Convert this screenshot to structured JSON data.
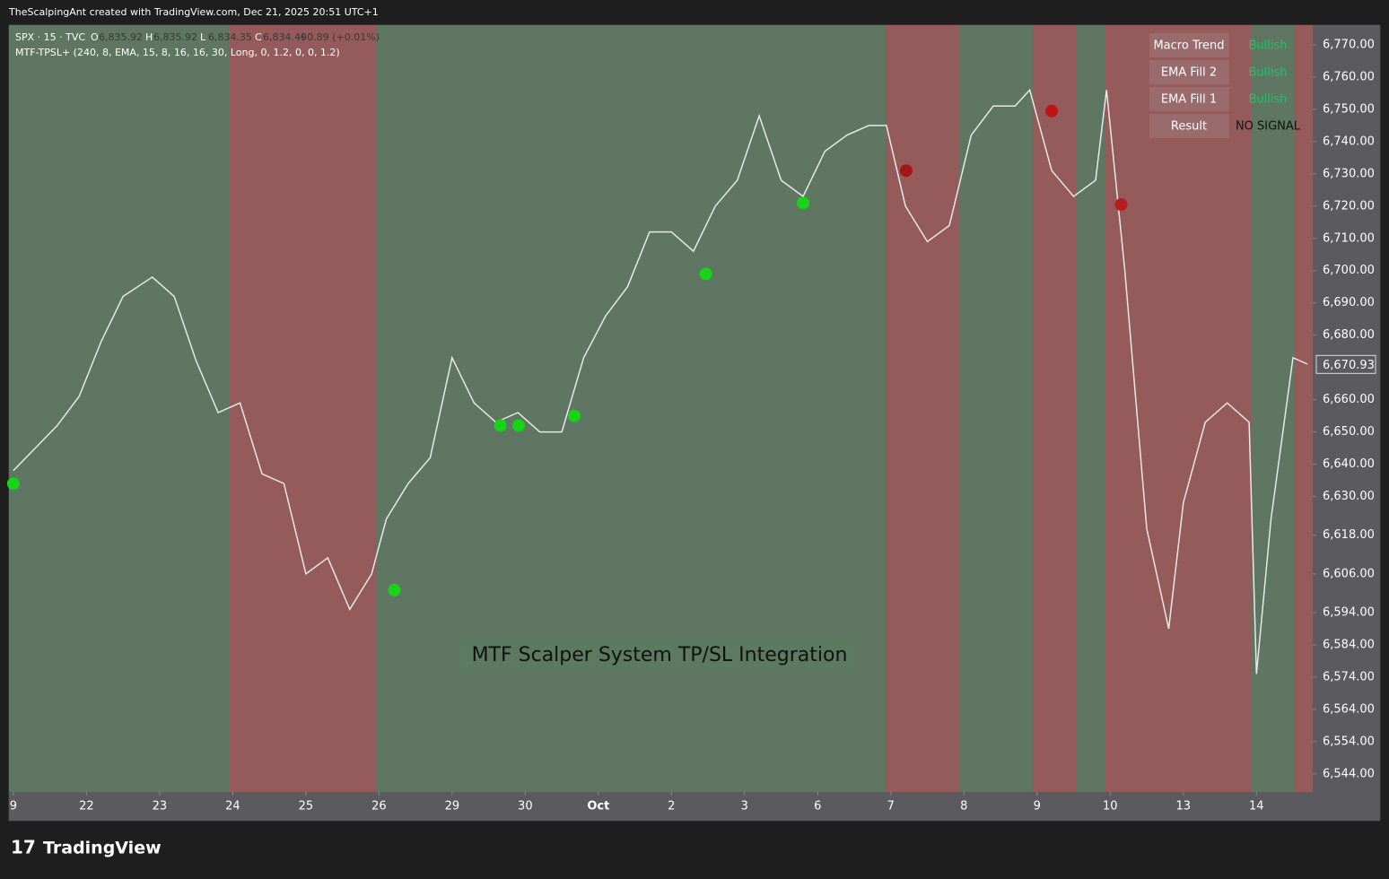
{
  "header": "TheScalpingAnt created with TradingView.com, Dec 21, 2025 20:51 UTC+1",
  "brand": "TradingView",
  "chart_data": {
    "type": "line",
    "symbol": "SPX · 15 · TVC",
    "ohlc": [
      {
        "label": "O",
        "value": "6,835.92"
      },
      {
        "label": "H",
        "value": "6,835.92"
      },
      {
        "label": "L",
        "value": "6,834.35"
      },
      {
        "label": "C",
        "value": "6,834.49"
      }
    ],
    "change": "+0.89 (+0.01%)",
    "indicator": "MTF-TPSL+ (240, 8, EMA, 15, 8, 16, 16, 30, Long, 0, 1.2, 0, 0, 1.2)",
    "annotation": "MTF Scalper System TP/SL Integration",
    "x": [
      0,
      0.3,
      0.6,
      0.9,
      1.2,
      1.5,
      1.9,
      2.2,
      2.5,
      2.8,
      3.1,
      3.4,
      3.7,
      4.0,
      4.3,
      4.6,
      4.9,
      5.1,
      5.4,
      5.7,
      6.0,
      6.3,
      6.6,
      6.9,
      7.2,
      7.5,
      7.8,
      8.1,
      8.4,
      8.7,
      9.0,
      9.3,
      9.6,
      9.9,
      10.2,
      10.5,
      10.8,
      11.1,
      11.4,
      11.7,
      11.94,
      12.2,
      12.5,
      12.8,
      13.1,
      13.4,
      13.7,
      13.9,
      14.2,
      14.5,
      14.8,
      14.95,
      15.2,
      15.5,
      15.8,
      16.0,
      16.3,
      16.6,
      16.9,
      17.0,
      17.2,
      17.5,
      17.7
    ],
    "values": [
      6638,
      6645,
      6652,
      6661,
      6678,
      6692,
      6698,
      6692,
      6672,
      6656,
      6659,
      6637,
      6634,
      6606,
      6611,
      6595,
      6606,
      6623,
      6634,
      6642,
      6673,
      6659,
      6653,
      6656,
      6650,
      6650,
      6673,
      6686,
      6695,
      6712,
      6712,
      6706,
      6720,
      6728,
      6748,
      6728,
      6723,
      6737,
      6742,
      6745,
      6745,
      6720,
      6709,
      6714,
      6742,
      6751,
      6751,
      6756,
      6731,
      6723,
      6728,
      6756,
      6700,
      6620,
      6589,
      6628,
      6653,
      6659,
      6653,
      6575,
      6623,
      6673,
      6671
    ],
    "color": "#e8e8e8",
    "regions": [
      {
        "start": 2.957,
        "end": 4.957,
        "color": "#955a5a"
      },
      {
        "start": 11.94,
        "end": 12.93,
        "color": "#955a5a"
      },
      {
        "start": 13.94,
        "end": 14.53,
        "color": "#955a5a"
      },
      {
        "start": 14.93,
        "end": 16.93,
        "color": "#955a5a"
      },
      {
        "start": 17.52,
        "end": 17.77,
        "color": "#955a5a"
      }
    ],
    "background_color": "#5e7662",
    "signals": [
      {
        "x": 0,
        "y": 6634,
        "color": "#18d418"
      },
      {
        "x": 5.21,
        "y": 6601,
        "color": "#18d418"
      },
      {
        "x": 6.66,
        "y": 6652,
        "color": "#18d418"
      },
      {
        "x": 6.91,
        "y": 6652,
        "color": "#18d418"
      },
      {
        "x": 7.67,
        "y": 6655,
        "color": "#18d418"
      },
      {
        "x": 9.47,
        "y": 6699,
        "color": "#18d418"
      },
      {
        "x": 10.8,
        "y": 6721,
        "color": "#18d418"
      },
      {
        "x": 12.21,
        "y": 6731,
        "color": "#a51616"
      },
      {
        "x": 14.2,
        "y": 6749.5,
        "color": "#c01414"
      },
      {
        "x": 15.15,
        "y": 6720.5,
        "color": "#b81c1c"
      }
    ],
    "last_price": {
      "value": 6670.93,
      "label": "6,670.93"
    },
    "xlim": [
      -0.06,
      17.77
    ],
    "xticks": [
      {
        "value": 0,
        "label": "9"
      },
      {
        "value": 1,
        "label": "22"
      },
      {
        "value": 2,
        "label": "23"
      },
      {
        "value": 3,
        "label": "24"
      },
      {
        "value": 4,
        "label": "25"
      },
      {
        "value": 5,
        "label": "26"
      },
      {
        "value": 6,
        "label": "29"
      },
      {
        "value": 7,
        "label": "30"
      },
      {
        "value": 8,
        "label": "Oct"
      },
      {
        "value": 9,
        "label": "2"
      },
      {
        "value": 10,
        "label": "3"
      },
      {
        "value": 11,
        "label": "6"
      },
      {
        "value": 12,
        "label": "7"
      },
      {
        "value": 13,
        "label": "8"
      },
      {
        "value": 14,
        "label": "9"
      },
      {
        "value": 15,
        "label": "10"
      },
      {
        "value": 16,
        "label": "13"
      },
      {
        "value": 17,
        "label": "14"
      }
    ],
    "ylim": [
      6538.4,
      6776.1
    ],
    "yticks": [
      {
        "value": 6770,
        "label": "6,770.00"
      },
      {
        "value": 6760,
        "label": "6,760.00"
      },
      {
        "value": 6750,
        "label": "6,750.00"
      },
      {
        "value": 6740,
        "label": "6,740.00"
      },
      {
        "value": 6730,
        "label": "6,730.00"
      },
      {
        "value": 6720,
        "label": "6,720.00"
      },
      {
        "value": 6710,
        "label": "6,710.00"
      },
      {
        "value": 6700,
        "label": "6,700.00"
      },
      {
        "value": 6690,
        "label": "6,690.00"
      },
      {
        "value": 6680,
        "label": "6,680.00"
      },
      {
        "value": 6660,
        "label": "6,660.00"
      },
      {
        "value": 6650,
        "label": "6,650.00"
      },
      {
        "value": 6640,
        "label": "6,640.00"
      },
      {
        "value": 6630,
        "label": "6,630.00"
      },
      {
        "value": 6618,
        "label": "6,618.00"
      },
      {
        "value": 6606,
        "label": "6,606.00"
      },
      {
        "value": 6594,
        "label": "6,594.00"
      },
      {
        "value": 6584,
        "label": "6,584.00"
      },
      {
        "value": 6574,
        "label": "6,574.00"
      },
      {
        "value": 6564,
        "label": "6,564.00"
      },
      {
        "value": 6554,
        "label": "6,554.00"
      },
      {
        "value": 6544,
        "label": "6,544.00"
      }
    ],
    "status_table": [
      [
        "Macro Trend",
        "Bullish"
      ],
      [
        "EMA Fill 2",
        "Bullish"
      ],
      [
        "EMA Fill 1",
        "Bullish"
      ],
      [
        "Result",
        "NO SIGNAL"
      ]
    ]
  }
}
